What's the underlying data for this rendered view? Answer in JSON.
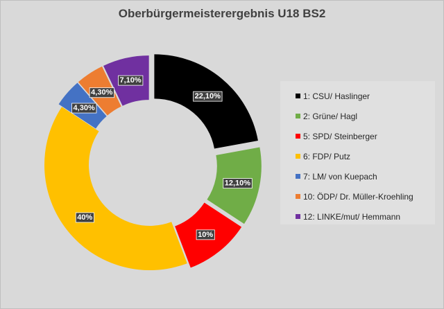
{
  "chart_data": {
    "type": "pie",
    "variant": "donut",
    "title": "Oberbürgermeisterergebnis U18 BS2",
    "legend_position": "right",
    "categories": [
      "1: CSU/ Haslinger",
      "2: Grüne/  Hagl",
      "5: SPD/ Steinberger",
      "6: FDP/ Putz",
      "7: LM/ von Kuepach",
      "10: ÖDP/ Dr. Müller-Kroehling",
      "12: LINKE/mut/ Hemmann"
    ],
    "values": [
      22.1,
      12.1,
      10,
      40,
      4.3,
      4.3,
      7.1
    ],
    "data_labels": [
      "22,10%",
      "12,10%",
      "10%",
      "40%",
      "4,30%",
      "4,30%",
      "7,10%"
    ],
    "colors": [
      "#000000",
      "#70ad47",
      "#ff0000",
      "#ffc000",
      "#4472c4",
      "#ed7d31",
      "#7030a0"
    ]
  }
}
